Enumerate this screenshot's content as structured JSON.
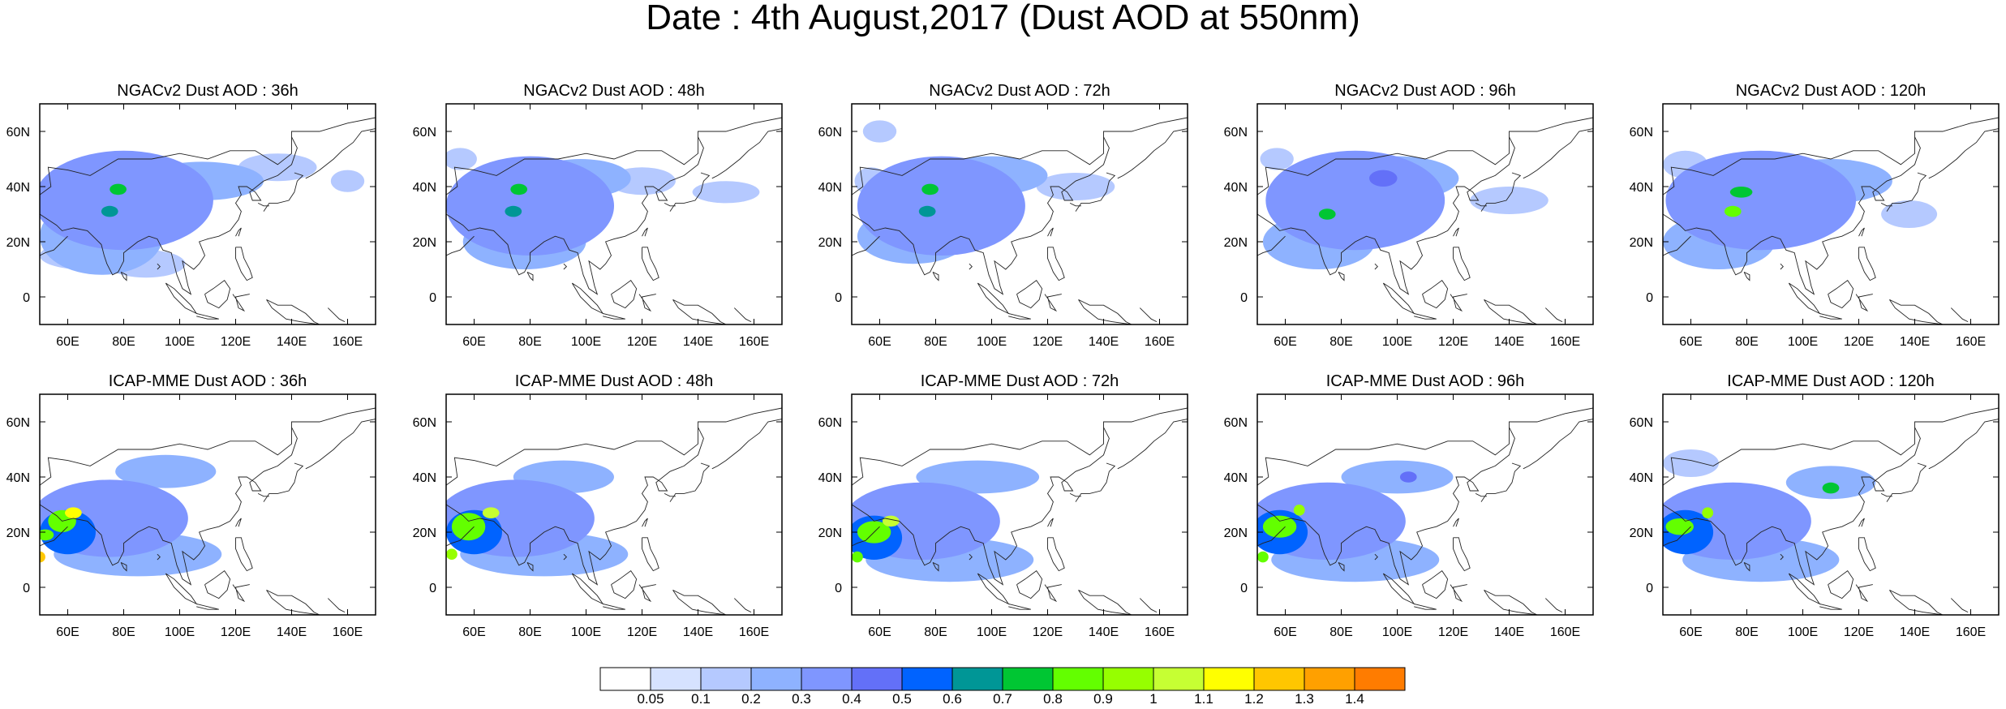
{
  "figure": {
    "title": "Date : 4th August,2017 (Dust AOD at 550nm)"
  },
  "chart_data": {
    "type": "heatmap",
    "title": "Date : 4th August,2017 (Dust AOD at 550nm)",
    "grid": false,
    "xlim": [
      50,
      170
    ],
    "ylim": [
      -10,
      70
    ],
    "x_ticks": [
      "60E",
      "80E",
      "100E",
      "120E",
      "140E",
      "160E"
    ],
    "y_ticks": [
      "60N",
      "40N",
      "20N",
      "0"
    ],
    "colorbar": {
      "placement": "bottom",
      "levels": [
        0.05,
        0.1,
        0.2,
        0.3,
        0.4,
        0.5,
        0.6,
        0.7,
        0.8,
        0.9,
        1,
        1.1,
        1.2,
        1.3,
        1.4
      ],
      "level_labels": [
        "0.05",
        "0.1",
        "0.2",
        "0.3",
        "0.4",
        "0.5",
        "0.6",
        "0.7",
        "0.8",
        "0.9",
        "1",
        "1.1",
        "1.2",
        "1.3",
        "1.4"
      ],
      "colors": [
        "#ffffff",
        "#d6e2ff",
        "#b5c9ff",
        "#8eb2ff",
        "#7f96ff",
        "#6370f8",
        "#0063ff",
        "#009696",
        "#00c633",
        "#63ff00",
        "#96ff00",
        "#c6ff33",
        "#ffff00",
        "#ffc600",
        "#ffa000",
        "#ff7c00",
        "#ff1900"
      ]
    },
    "panels": [
      {
        "title": "NGACv2 Dust AOD : 36h",
        "dust": [
          {
            "lon": 80,
            "lat": 35,
            "rlon": 32,
            "rlat": 18,
            "value": 0.35
          },
          {
            "lon": 72,
            "lat": 22,
            "rlon": 22,
            "rlat": 14,
            "value": 0.25
          },
          {
            "lon": 108,
            "lat": 42,
            "rlon": 22,
            "rlat": 7,
            "value": 0.2
          },
          {
            "lon": 135,
            "lat": 47,
            "rlon": 14,
            "rlat": 5,
            "value": 0.12
          },
          {
            "lon": 78,
            "lat": 39,
            "rlon": 3,
            "rlat": 2,
            "value": 0.75
          },
          {
            "lon": 75,
            "lat": 31,
            "rlon": 3,
            "rlat": 2,
            "value": 0.65
          },
          {
            "lon": 65,
            "lat": 15,
            "rlon": 15,
            "rlat": 5,
            "value": 0.1
          },
          {
            "lon": 88,
            "lat": 12,
            "rlon": 14,
            "rlat": 5,
            "value": 0.1
          },
          {
            "lon": 160,
            "lat": 42,
            "rlon": 6,
            "rlat": 4,
            "value": 0.1
          }
        ]
      },
      {
        "title": "NGACv2 Dust AOD : 48h",
        "dust": [
          {
            "lon": 80,
            "lat": 33,
            "rlon": 30,
            "rlat": 18,
            "value": 0.35
          },
          {
            "lon": 98,
            "lat": 43,
            "rlon": 18,
            "rlat": 7,
            "value": 0.25
          },
          {
            "lon": 78,
            "lat": 20,
            "rlon": 22,
            "rlat": 10,
            "value": 0.2
          },
          {
            "lon": 55,
            "lat": 50,
            "rlon": 6,
            "rlat": 4,
            "value": 0.1
          },
          {
            "lon": 76,
            "lat": 39,
            "rlon": 3,
            "rlat": 2,
            "value": 0.7
          },
          {
            "lon": 74,
            "lat": 31,
            "rlon": 3,
            "rlat": 2,
            "value": 0.6
          },
          {
            "lon": 150,
            "lat": 38,
            "rlon": 12,
            "rlat": 4,
            "value": 0.1
          },
          {
            "lon": 120,
            "lat": 42,
            "rlon": 12,
            "rlat": 5,
            "value": 0.1
          }
        ]
      },
      {
        "title": "NGACv2 Dust AOD : 72h",
        "dust": [
          {
            "lon": 82,
            "lat": 33,
            "rlon": 30,
            "rlat": 18,
            "value": 0.35
          },
          {
            "lon": 100,
            "lat": 44,
            "rlon": 20,
            "rlat": 7,
            "value": 0.25
          },
          {
            "lon": 72,
            "lat": 22,
            "rlon": 20,
            "rlat": 10,
            "value": 0.2
          },
          {
            "lon": 60,
            "lat": 60,
            "rlon": 6,
            "rlat": 4,
            "value": 0.1
          },
          {
            "lon": 78,
            "lat": 39,
            "rlon": 3,
            "rlat": 2,
            "value": 0.7
          },
          {
            "lon": 77,
            "lat": 31,
            "rlon": 3,
            "rlat": 2,
            "value": 0.6
          },
          {
            "lon": 130,
            "lat": 40,
            "rlon": 14,
            "rlat": 5,
            "value": 0.12
          },
          {
            "lon": 57,
            "lat": 42,
            "rlon": 6,
            "rlat": 5,
            "value": 0.12
          }
        ]
      },
      {
        "title": "NGACv2 Dust AOD : 96h",
        "dust": [
          {
            "lon": 85,
            "lat": 35,
            "rlon": 32,
            "rlat": 18,
            "value": 0.35
          },
          {
            "lon": 100,
            "lat": 43,
            "rlon": 22,
            "rlat": 8,
            "value": 0.25
          },
          {
            "lon": 72,
            "lat": 20,
            "rlon": 20,
            "rlat": 10,
            "value": 0.2
          },
          {
            "lon": 95,
            "lat": 43,
            "rlon": 5,
            "rlat": 3,
            "value": 0.45
          },
          {
            "lon": 75,
            "lat": 30,
            "rlon": 3,
            "rlat": 2,
            "value": 0.75
          },
          {
            "lon": 57,
            "lat": 50,
            "rlon": 6,
            "rlat": 4,
            "value": 0.1
          },
          {
            "lon": 140,
            "lat": 35,
            "rlon": 14,
            "rlat": 5,
            "value": 0.1
          }
        ]
      },
      {
        "title": "NGACv2 Dust AOD : 120h",
        "dust": [
          {
            "lon": 85,
            "lat": 35,
            "rlon": 34,
            "rlat": 18,
            "value": 0.35
          },
          {
            "lon": 110,
            "lat": 42,
            "rlon": 22,
            "rlat": 8,
            "value": 0.25
          },
          {
            "lon": 70,
            "lat": 20,
            "rlon": 20,
            "rlat": 10,
            "value": 0.2
          },
          {
            "lon": 78,
            "lat": 38,
            "rlon": 4,
            "rlat": 2,
            "value": 0.7
          },
          {
            "lon": 75,
            "lat": 31,
            "rlon": 3,
            "rlat": 2,
            "value": 0.8
          },
          {
            "lon": 58,
            "lat": 48,
            "rlon": 8,
            "rlat": 5,
            "value": 0.1
          },
          {
            "lon": 138,
            "lat": 30,
            "rlon": 10,
            "rlat": 5,
            "value": 0.1
          }
        ]
      },
      {
        "title": "ICAP-MME Dust AOD : 36h",
        "dust": [
          {
            "lon": 75,
            "lat": 25,
            "rlon": 28,
            "rlat": 14,
            "value": 0.35
          },
          {
            "lon": 85,
            "lat": 12,
            "rlon": 30,
            "rlat": 8,
            "value": 0.2
          },
          {
            "lon": 95,
            "lat": 42,
            "rlon": 18,
            "rlat": 6,
            "value": 0.2
          },
          {
            "lon": 60,
            "lat": 20,
            "rlon": 10,
            "rlat": 8,
            "value": 0.5
          },
          {
            "lon": 58,
            "lat": 24,
            "rlon": 5,
            "rlat": 4,
            "value": 0.85
          },
          {
            "lon": 62,
            "lat": 27,
            "rlon": 3,
            "rlat": 2,
            "value": 1.1
          },
          {
            "lon": 52,
            "lat": 19,
            "rlon": 3,
            "rlat": 2,
            "value": 0.8
          },
          {
            "lon": 50,
            "lat": 11,
            "rlon": 2,
            "rlat": 2,
            "value": 1.2
          }
        ]
      },
      {
        "title": "ICAP-MME Dust AOD : 48h",
        "dust": [
          {
            "lon": 75,
            "lat": 25,
            "rlon": 28,
            "rlat": 14,
            "value": 0.35
          },
          {
            "lon": 85,
            "lat": 12,
            "rlon": 30,
            "rlat": 8,
            "value": 0.2
          },
          {
            "lon": 92,
            "lat": 40,
            "rlon": 18,
            "rlat": 6,
            "value": 0.2
          },
          {
            "lon": 60,
            "lat": 20,
            "rlon": 10,
            "rlat": 8,
            "value": 0.5
          },
          {
            "lon": 58,
            "lat": 22,
            "rlon": 6,
            "rlat": 5,
            "value": 0.85
          },
          {
            "lon": 66,
            "lat": 27,
            "rlon": 3,
            "rlat": 2,
            "value": 1.0
          },
          {
            "lon": 52,
            "lat": 12,
            "rlon": 2,
            "rlat": 2,
            "value": 0.9
          }
        ]
      },
      {
        "title": "ICAP-MME Dust AOD : 72h",
        "dust": [
          {
            "lon": 75,
            "lat": 24,
            "rlon": 28,
            "rlat": 14,
            "value": 0.35
          },
          {
            "lon": 85,
            "lat": 10,
            "rlon": 30,
            "rlat": 8,
            "value": 0.2
          },
          {
            "lon": 95,
            "lat": 40,
            "rlon": 22,
            "rlat": 6,
            "value": 0.2
          },
          {
            "lon": 58,
            "lat": 18,
            "rlon": 10,
            "rlat": 8,
            "value": 0.5
          },
          {
            "lon": 58,
            "lat": 20,
            "rlon": 6,
            "rlat": 4,
            "value": 0.85
          },
          {
            "lon": 64,
            "lat": 24,
            "rlon": 3,
            "rlat": 2,
            "value": 1.0
          },
          {
            "lon": 52,
            "lat": 11,
            "rlon": 2,
            "rlat": 2,
            "value": 0.8
          }
        ]
      },
      {
        "title": "ICAP-MME Dust AOD : 96h",
        "dust": [
          {
            "lon": 75,
            "lat": 24,
            "rlon": 28,
            "rlat": 14,
            "value": 0.35
          },
          {
            "lon": 85,
            "lat": 10,
            "rlon": 30,
            "rlat": 8,
            "value": 0.2
          },
          {
            "lon": 100,
            "lat": 40,
            "rlon": 20,
            "rlat": 6,
            "value": 0.2
          },
          {
            "lon": 104,
            "lat": 40,
            "rlon": 3,
            "rlat": 2,
            "value": 0.45
          },
          {
            "lon": 58,
            "lat": 20,
            "rlon": 10,
            "rlat": 8,
            "value": 0.5
          },
          {
            "lon": 58,
            "lat": 22,
            "rlon": 6,
            "rlat": 4,
            "value": 0.85
          },
          {
            "lon": 65,
            "lat": 28,
            "rlon": 2,
            "rlat": 2,
            "value": 0.9
          },
          {
            "lon": 52,
            "lat": 11,
            "rlon": 2,
            "rlat": 2,
            "value": 0.8
          }
        ]
      },
      {
        "title": "ICAP-MME Dust AOD : 120h",
        "dust": [
          {
            "lon": 75,
            "lat": 24,
            "rlon": 28,
            "rlat": 14,
            "value": 0.35
          },
          {
            "lon": 85,
            "lat": 10,
            "rlon": 28,
            "rlat": 8,
            "value": 0.2
          },
          {
            "lon": 110,
            "lat": 38,
            "rlon": 16,
            "rlat": 6,
            "value": 0.2
          },
          {
            "lon": 60,
            "lat": 45,
            "rlon": 10,
            "rlat": 5,
            "value": 0.15
          },
          {
            "lon": 58,
            "lat": 20,
            "rlon": 10,
            "rlat": 8,
            "value": 0.5
          },
          {
            "lon": 56,
            "lat": 22,
            "rlon": 5,
            "rlat": 3,
            "value": 0.85
          },
          {
            "lon": 66,
            "lat": 27,
            "rlon": 2,
            "rlat": 2,
            "value": 0.9
          },
          {
            "lon": 110,
            "lat": 36,
            "rlon": 3,
            "rlat": 2,
            "value": 0.75
          }
        ]
      }
    ]
  }
}
